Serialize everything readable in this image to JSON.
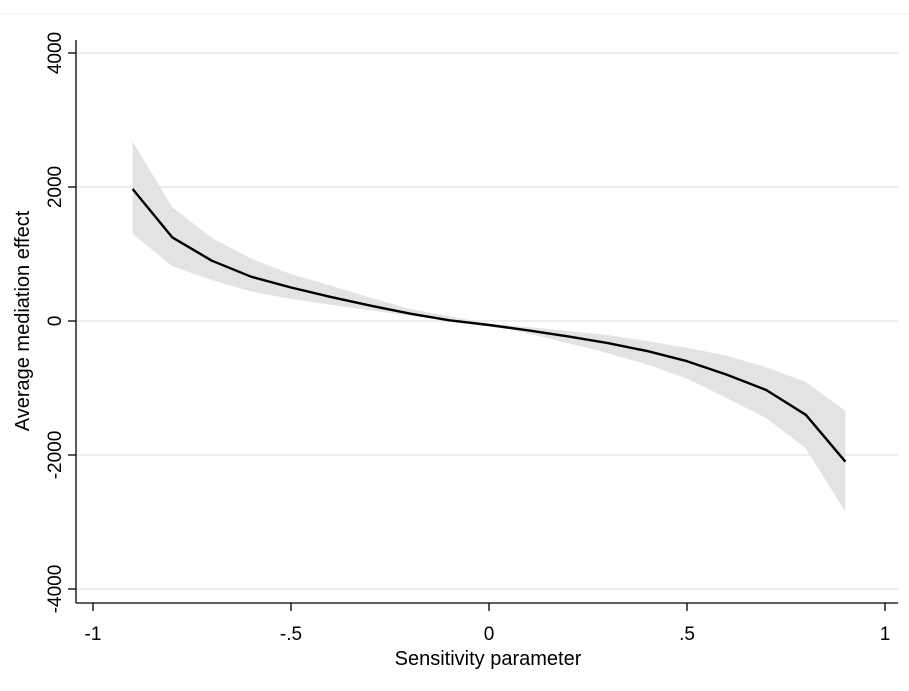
{
  "chart_data": {
    "type": "line",
    "title": "",
    "xlabel": "Sensitivity parameter",
    "ylabel": "Average mediation effect",
    "xlim": [
      -1,
      1
    ],
    "ylim": [
      -4000,
      4000
    ],
    "x_ticks": [
      -1,
      -0.5,
      0,
      0.5,
      1
    ],
    "x_tick_labels": [
      "-1",
      "-.5",
      "0",
      ".5",
      "1"
    ],
    "y_ticks": [
      -4000,
      -2000,
      0,
      2000,
      4000
    ],
    "y_tick_labels": [
      "-4000",
      "-2000",
      "0",
      "2000",
      "4000"
    ],
    "grid": "horizontal",
    "legend": "none",
    "colors": {
      "line": "#000000",
      "band": "#e3e3e3",
      "grid": "#e6f0ef",
      "axis": "#000000",
      "background": "#ffffff"
    },
    "series": [
      {
        "x": [
          -0.9,
          -0.8,
          -0.7,
          -0.6,
          -0.5,
          -0.4,
          -0.3,
          -0.2,
          -0.1,
          0,
          0.1,
          0.2,
          0.3,
          0.4,
          0.5,
          0.6,
          0.7,
          0.8,
          0.9
        ],
        "y": [
          1970,
          1250,
          900,
          660,
          500,
          360,
          230,
          110,
          10,
          -60,
          -140,
          -230,
          -330,
          -450,
          -600,
          -800,
          -1030,
          -1400,
          -2100
        ],
        "lower": [
          1300,
          820,
          610,
          440,
          330,
          240,
          160,
          80,
          0,
          -60,
          -190,
          -330,
          -480,
          -650,
          -860,
          -1150,
          -1450,
          -1900,
          -2850
        ],
        "upper": [
          2680,
          1700,
          1240,
          930,
          700,
          530,
          350,
          180,
          70,
          -40,
          -90,
          -150,
          -210,
          -300,
          -400,
          -520,
          -690,
          -910,
          -1340
        ]
      }
    ]
  }
}
